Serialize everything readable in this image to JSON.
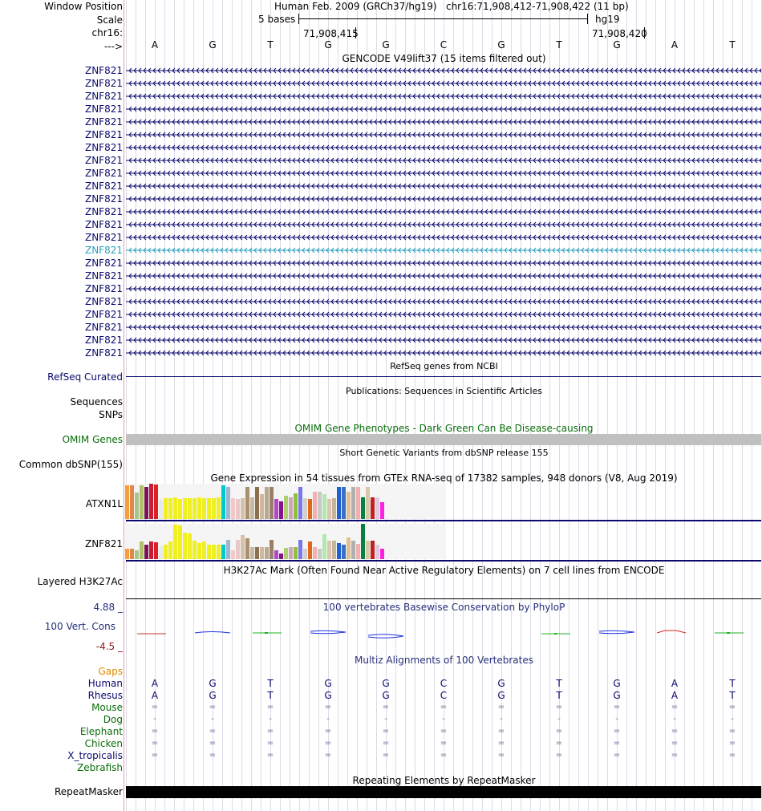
{
  "window_position": {
    "label": "Window Position",
    "assembly": "Human Feb. 2009 (GRCh37/hg19)",
    "coords": "chr16:71,908,412-71,908,422 (11 bp)"
  },
  "scale": {
    "label": "Scale",
    "bases": "5 bases",
    "assembly_short": "hg19"
  },
  "chrom": {
    "label": "chr16:",
    "pos_a": "71,908,415",
    "pos_b": "71,908,420"
  },
  "strand_label": "--->",
  "bases": [
    "A",
    "G",
    "T",
    "G",
    "G",
    "C",
    "G",
    "T",
    "G",
    "A",
    "T"
  ],
  "gencode": {
    "title": "GENCODE V49lift37 (15 items filtered out)",
    "gene_name": "ZNF821",
    "count": 23,
    "selected_index": 14
  },
  "refseq": {
    "title": "RefSeq genes from NCBI",
    "label": "RefSeq Curated"
  },
  "publications": {
    "title": "Publications: Sequences in Scientific Articles",
    "labels": [
      "Sequences",
      "SNPs"
    ]
  },
  "omim": {
    "title": "OMIM Gene Phenotypes - Dark Green Can Be Disease-causing",
    "label": "OMIM Genes"
  },
  "dbsnp": {
    "title": "Short Genetic Variants from dbSNP release 155",
    "label": "Common dbSNP(155)"
  },
  "gtex": {
    "title": "Gene Expression in 54 tissues from GTEx RNA-seq of 17382 samples, 948 donors (V8, Aug 2019)",
    "genes": [
      {
        "name": "ATXN1L",
        "values": [
          0.95,
          0.95,
          0.75,
          0.95,
          0.92,
          1.0,
          0.97,
          0.55,
          0.6,
          0.6,
          0.62,
          0.58,
          0.6,
          0.6,
          0.6,
          0.62,
          0.6,
          0.6,
          0.6,
          0.62,
          0.95,
          0.92,
          0.6,
          0.58,
          0.6,
          0.92,
          0.62,
          0.92,
          0.7,
          0.92,
          0.92,
          0.58,
          0.5,
          0.65,
          0.62,
          0.72,
          0.92,
          0.6,
          0.58,
          0.78,
          0.78,
          0.7,
          0.58,
          0.6,
          0.92,
          0.92,
          0.78,
          0.92,
          0.92,
          0.62,
          0.92,
          0.62,
          0.62,
          0.48
        ]
      },
      {
        "name": "ZNF821",
        "values": [
          0.3,
          0.3,
          0.25,
          0.5,
          0.42,
          0.5,
          0.48,
          0.37,
          0.42,
          0.5,
          0.97,
          0.95,
          0.75,
          0.72,
          0.53,
          0.45,
          0.5,
          0.4,
          0.4,
          0.4,
          0.4,
          0.55,
          0.25,
          0.55,
          0.68,
          0.6,
          0.35,
          0.35,
          0.35,
          0.35,
          0.55,
          0.25,
          0.15,
          0.32,
          0.35,
          0.35,
          0.55,
          0.3,
          0.5,
          0.35,
          0.3,
          0.7,
          0.52,
          0.52,
          0.45,
          0.4,
          0.62,
          0.52,
          0.43,
          1.0,
          0.52,
          0.52,
          0.42,
          0.3
        ]
      }
    ],
    "colors": [
      "#f4a03c",
      "#e0874a",
      "#a8c48a",
      "#b0c06a",
      "#7a1450",
      "#c71b3a",
      "#dd2020",
      "#e8e8e8",
      "#f0f020",
      "#f0f020",
      "#f0f020",
      "#f0f020",
      "#f0f020",
      "#f0f020",
      "#f0f020",
      "#f0f020",
      "#f0f020",
      "#f0f020",
      "#f0f020",
      "#f0f020",
      "#00c8d0",
      "#a0b4d0",
      "#f4c8c8",
      "#e8c8c8",
      "#d8c0a8",
      "#a89070",
      "#c8b8a0",
      "#8a7050",
      "#d0b8a0",
      "#b8a890",
      "#9a8068",
      "#b048c8",
      "#8a1090",
      "#b0d070",
      "#c8a8b8",
      "#90c040",
      "#7a78e8",
      "#d0d0d0",
      "#e06818",
      "#f4b0b0",
      "#c8c8c8",
      "#b0e8b0",
      "#d8c8b0",
      "#c8b498",
      "#2060d0",
      "#3870c8",
      "#e0c090",
      "#b0b0b0",
      "#f0b0b0",
      "#088040",
      "#d8c8a8",
      "#c02020",
      "#e0c8e0",
      "#ff20e0"
    ]
  },
  "h3k27ac": {
    "title": "H3K27Ac Mark (Often Found Near Active Regulatory Elements) on 7 cell lines from ENCODE",
    "label": "Layered H3K27Ac"
  },
  "phylop": {
    "title": "100 vertebrates Basewise Conservation by PhyloP",
    "label": "100 Vert. Cons",
    "max": "4.88 _",
    "min": "-4.5 _"
  },
  "multiz": {
    "title": "Multiz Alignments of 100 Vertebrates",
    "species": [
      {
        "name": "Gaps",
        "style": "orange",
        "row": ""
      },
      {
        "name": "Human",
        "style": "gene",
        "row": "AGTGGCGTGAT"
      },
      {
        "name": "Rhesus",
        "style": "gene",
        "row": "AGTGGCGTGAT"
      },
      {
        "name": "Mouse",
        "style": "green",
        "row": "==========="
      },
      {
        "name": "Dog",
        "style": "green",
        "row": "-----------"
      },
      {
        "name": "Elephant",
        "style": "green",
        "row": "==========="
      },
      {
        "name": "Chicken",
        "style": "green",
        "row": "==========="
      },
      {
        "name": "X_tropicalis",
        "style": "gene",
        "row": "==========="
      },
      {
        "name": "Zebrafish",
        "style": "green",
        "row": ""
      }
    ]
  },
  "repeatmasker": {
    "title": "Repeating Elements by RepeatMasker",
    "label": "RepeatMasker"
  }
}
